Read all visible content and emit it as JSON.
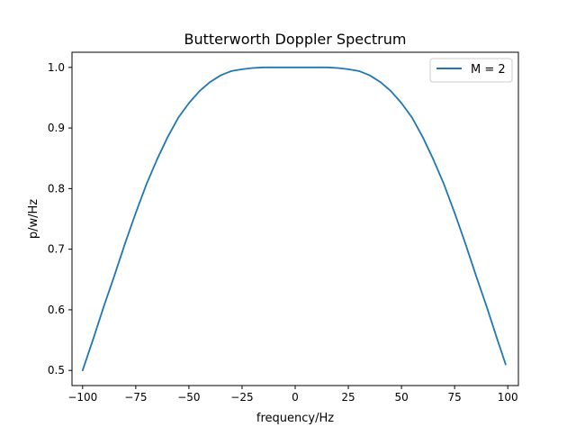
{
  "chart_data": {
    "type": "line",
    "title": "Butterworth Doppler Spectrum",
    "xlabel": "frequency/Hz",
    "ylabel": "p/w/Hz",
    "xlim": [
      -105,
      105
    ],
    "ylim": [
      0.475,
      1.025
    ],
    "xticks": [
      -100,
      -75,
      -50,
      -25,
      0,
      25,
      50,
      75,
      100
    ],
    "xtick_labels": [
      "−100",
      "−75",
      "−50",
      "−25",
      "0",
      "25",
      "50",
      "75",
      "100"
    ],
    "yticks": [
      0.5,
      0.6,
      0.7,
      0.8,
      0.9,
      1.0
    ],
    "ytick_labels": [
      "0.5",
      "0.6",
      "0.7",
      "0.8",
      "0.9",
      "1.0"
    ],
    "grid": false,
    "legend_position": "upper right",
    "series": [
      {
        "name": "M = 2",
        "color": "#1f77b4",
        "x": [
          -100,
          -95,
          -90,
          -85,
          -80,
          -75,
          -70,
          -65,
          -60,
          -55,
          -50,
          -45,
          -40,
          -35,
          -30,
          -25,
          -20,
          -15,
          -10,
          -5,
          0,
          5,
          10,
          15,
          20,
          25,
          30,
          35,
          40,
          45,
          50,
          55,
          60,
          65,
          70,
          75,
          80,
          85,
          90,
          95,
          99
        ],
        "y": [
          0.5,
          0.552,
          0.606,
          0.657,
          0.71,
          0.76,
          0.807,
          0.848,
          0.885,
          0.917,
          0.941,
          0.961,
          0.976,
          0.987,
          0.994,
          0.997,
          0.999,
          1.0,
          1.0,
          1.0,
          1.0,
          1.0,
          1.0,
          1.0,
          0.999,
          0.997,
          0.994,
          0.987,
          0.976,
          0.961,
          0.941,
          0.917,
          0.885,
          0.848,
          0.807,
          0.76,
          0.71,
          0.657,
          0.606,
          0.552,
          0.51
        ]
      }
    ]
  }
}
